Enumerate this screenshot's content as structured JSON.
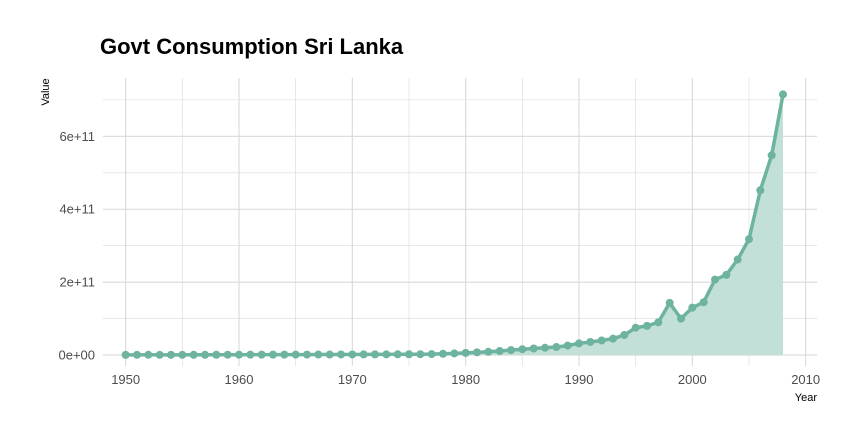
{
  "chart_data": {
    "type": "area",
    "title": "Govt Consumption Sri Lanka",
    "xlabel": "Year",
    "ylabel": "Value",
    "xlim": [
      1948,
      2011
    ],
    "ylim": [
      -30000000000,
      760000000000
    ],
    "xticks": [
      1950,
      1960,
      1970,
      1980,
      1990,
      2000,
      2010
    ],
    "xtick_labels": [
      "1950",
      "1960",
      "1970",
      "1980",
      "1990",
      "2000",
      "2010"
    ],
    "yticks": [
      0,
      200000000000,
      400000000000,
      600000000000
    ],
    "ytick_labels": [
      "0e+00",
      "2e+11",
      "4e+11",
      "6e+11"
    ],
    "grid": true,
    "colors": {
      "line": "#6db39f",
      "fill": "#c2e0d8",
      "grid": "#d9d9d9"
    },
    "series": [
      {
        "x": [
          1950,
          1951,
          1952,
          1953,
          1954,
          1955,
          1956,
          1957,
          1958,
          1959,
          1960,
          1961,
          1962,
          1963,
          1964,
          1965,
          1966,
          1967,
          1968,
          1969,
          1970,
          1971,
          1972,
          1973,
          1974,
          1975,
          1976,
          1977,
          1978,
          1979,
          1980,
          1981,
          1982,
          1983,
          1984,
          1985,
          1986,
          1987,
          1988,
          1989,
          1990,
          1991,
          1992,
          1993,
          1994,
          1995,
          1996,
          1997,
          1998,
          1999,
          2000,
          2001,
          2002,
          2003,
          2004,
          2005,
          2006,
          2007,
          2008
        ],
        "y": [
          500000000,
          600000000,
          700000000,
          650000000,
          600000000,
          620000000,
          700000000,
          800000000,
          900000000,
          950000000,
          1000000000,
          1100000000,
          1150000000,
          1200000000,
          1250000000,
          1300000000,
          1350000000,
          1400000000,
          1500000000,
          1600000000,
          1700000000,
          1800000000,
          1900000000,
          2000000000,
          2100000000,
          2200000000,
          2400000000,
          2700000000,
          3500000000,
          4500000000,
          6000000000,
          7500000000,
          9000000000,
          11000000000,
          13500000000,
          16000000000,
          18000000000,
          20000000000,
          22000000000,
          26000000000,
          32000000000,
          36000000000,
          40000000000,
          45000000000,
          55000000000,
          75000000000,
          80000000000,
          90000000000,
          143000000000,
          100000000000,
          130000000000,
          145000000000,
          207000000000,
          220000000000,
          262000000000,
          318000000000,
          452000000000,
          548000000000,
          715000000000
        ]
      }
    ]
  }
}
